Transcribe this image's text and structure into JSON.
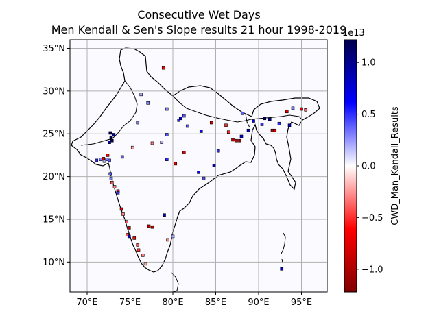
{
  "chart_data": {
    "type": "heatmap",
    "title_line1": "Consecutive Wet Days",
    "title_line2": "Men Kendall & Sen's Slope results 21 hour 1998-2019",
    "xlabel": "",
    "ylabel": "",
    "x_ticks": [
      "70°E",
      "75°E",
      "80°E",
      "85°E",
      "90°E",
      "95°E"
    ],
    "x_tick_values": [
      70,
      75,
      80,
      85,
      90,
      95
    ],
    "y_ticks": [
      "10°N",
      "15°N",
      "20°N",
      "25°N",
      "30°N",
      "35°N"
    ],
    "y_tick_values": [
      10,
      15,
      20,
      25,
      30,
      35
    ],
    "xlim": [
      68.0,
      98.0
    ],
    "ylim": [
      6.5,
      36.0
    ],
    "grid": true,
    "colorbar": {
      "label": "CWD_Man_Kendall_Results",
      "scale_label": "1e13",
      "ticks": [
        "1.0",
        "0.5",
        "0.0",
        "−0.5",
        "−1.0"
      ],
      "tick_values": [
        1.0,
        0.5,
        0.0,
        -0.5,
        -1.0
      ],
      "range": [
        -1.22,
        1.22
      ],
      "colormap": "seismic_r",
      "colors": {
        "high": "#00004c",
        "mid": "#ffffff",
        "low": "#800000"
      }
    },
    "points": [
      [
        72.7,
        25.1,
        1.2
      ],
      [
        72.8,
        24.6,
        1.2
      ],
      [
        72.9,
        24.2,
        1.1
      ],
      [
        73.1,
        24.9,
        1.0
      ],
      [
        72.6,
        24.0,
        0.9
      ],
      [
        72.4,
        22.5,
        -0.6
      ],
      [
        71.9,
        22.1,
        -0.6
      ],
      [
        72.3,
        22.0,
        0.3
      ],
      [
        72.6,
        21.9,
        0.4
      ],
      [
        71.1,
        21.9,
        0.5
      ],
      [
        71.6,
        22.0,
        0.3
      ],
      [
        72.0,
        21.8,
        0.2
      ],
      [
        72.7,
        20.3,
        0.4
      ],
      [
        72.8,
        19.8,
        0.3
      ],
      [
        72.9,
        19.3,
        -0.4
      ],
      [
        73.2,
        18.8,
        -0.3
      ],
      [
        73.6,
        18.3,
        -0.6
      ],
      [
        73.6,
        18.1,
        0.5
      ],
      [
        74.0,
        16.2,
        -0.8
      ],
      [
        74.2,
        15.6,
        -0.3
      ],
      [
        74.6,
        14.7,
        -0.4
      ],
      [
        74.9,
        14.0,
        -0.9
      ],
      [
        74.7,
        13.2,
        -0.4
      ],
      [
        74.9,
        13.0,
        0.8
      ],
      [
        75.5,
        12.8,
        -0.6
      ],
      [
        75.9,
        12.0,
        -0.4
      ],
      [
        76.0,
        11.4,
        -0.5
      ],
      [
        76.5,
        10.8,
        -0.3
      ],
      [
        76.8,
        9.8,
        -0.2
      ],
      [
        77.2,
        14.2,
        -0.8
      ],
      [
        77.6,
        14.1,
        -0.9
      ],
      [
        79.0,
        15.5,
        0.8
      ],
      [
        79.4,
        12.6,
        -0.3
      ],
      [
        80.0,
        13.0,
        0.2
      ],
      [
        80.3,
        21.5,
        -0.7
      ],
      [
        79.3,
        22.0,
        0.5
      ],
      [
        81.3,
        22.8,
        -0.8
      ],
      [
        83.6,
        19.8,
        0.4
      ],
      [
        83.0,
        20.5,
        0.6
      ],
      [
        84.8,
        21.3,
        0.9
      ],
      [
        85.3,
        23.0,
        0.5
      ],
      [
        87.0,
        24.3,
        -0.9
      ],
      [
        87.4,
        24.2,
        -0.8
      ],
      [
        87.8,
        24.2,
        -1.0
      ],
      [
        88.0,
        24.7,
        0.7
      ],
      [
        86.5,
        25.2,
        -0.5
      ],
      [
        88.8,
        25.4,
        0.8
      ],
      [
        89.4,
        26.5,
        0.7
      ],
      [
        90.4,
        26.1,
        0.5
      ],
      [
        90.7,
        26.8,
        1.1
      ],
      [
        91.3,
        26.7,
        0.9
      ],
      [
        91.6,
        25.4,
        -0.9
      ],
      [
        91.9,
        25.4,
        -0.8
      ],
      [
        92.4,
        26.2,
        0.5
      ],
      [
        93.6,
        26.0,
        0.8
      ],
      [
        93.3,
        27.6,
        -0.7
      ],
      [
        95.0,
        27.9,
        -0.8
      ],
      [
        95.5,
        27.8,
        -0.4
      ],
      [
        94.0,
        28.0,
        0.3
      ],
      [
        84.5,
        26.3,
        -0.8
      ],
      [
        83.3,
        25.3,
        0.6
      ],
      [
        81.7,
        25.9,
        0.4
      ],
      [
        78.7,
        24.0,
        0.2
      ],
      [
        79.3,
        24.9,
        0.4
      ],
      [
        80.7,
        26.6,
        0.5
      ],
      [
        80.9,
        26.8,
        0.8
      ],
      [
        79.3,
        27.9,
        0.3
      ],
      [
        81.3,
        27.1,
        0.4
      ],
      [
        86.2,
        26.0,
        -0.5
      ],
      [
        88.1,
        27.4,
        0.4
      ],
      [
        92.7,
        9.2,
        0.7
      ],
      [
        75.9,
        26.3,
        0.3
      ],
      [
        77.6,
        23.9,
        -0.3
      ],
      [
        74.1,
        22.3,
        0.4
      ],
      [
        75.3,
        23.4,
        -0.2
      ],
      [
        78.9,
        32.7,
        -0.6
      ],
      [
        76.3,
        29.6,
        0.2
      ],
      [
        77.1,
        28.6,
        0.3
      ]
    ]
  }
}
